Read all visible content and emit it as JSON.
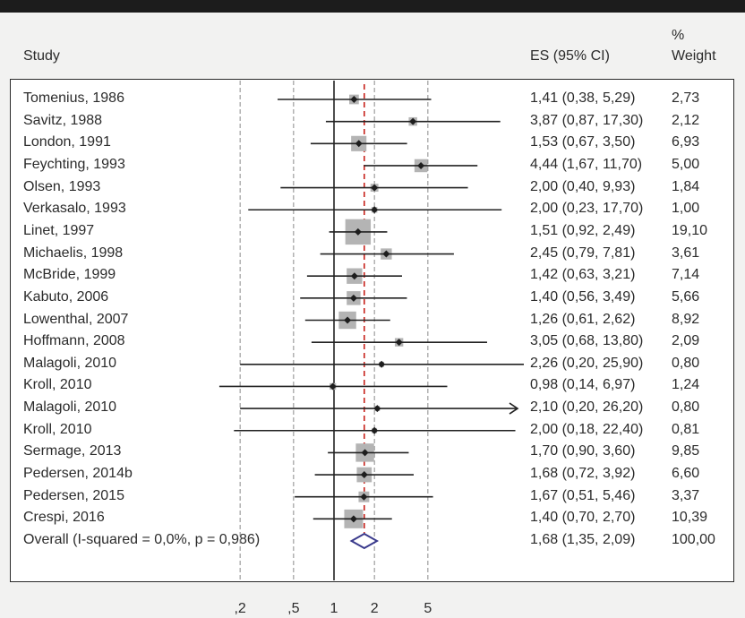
{
  "header": {
    "study": "Study",
    "es": "ES (95% CI)",
    "weight_line1": "%",
    "weight_line2": "Weight"
  },
  "chart_data": {
    "type": "forest",
    "x_scale": "log",
    "xlim": [
      0.14,
      26.2
    ],
    "null_value": 1,
    "pooled_line": 1.68,
    "x_ticks": [
      0.2,
      0.5,
      1,
      2,
      5
    ],
    "x_tick_labels": [
      ",2",
      ",5",
      "1",
      "2",
      "5"
    ],
    "colors": {
      "box": "#b4b4b4",
      "line": "#222222",
      "pooled_line": "#c8231c",
      "diamond": "#3a3a8c"
    },
    "studies": [
      {
        "study": "Tomenius, 1986",
        "es": 1.41,
        "lo": 0.38,
        "hi": 5.29,
        "es_text": "1,41 (0,38, 5,29)",
        "weight": 2.73,
        "weight_text": "2,73"
      },
      {
        "study": "Savitz, 1988",
        "es": 3.87,
        "lo": 0.87,
        "hi": 17.3,
        "es_text": "3,87 (0,87, 17,30)",
        "weight": 2.12,
        "weight_text": "2,12"
      },
      {
        "study": "London, 1991",
        "es": 1.53,
        "lo": 0.67,
        "hi": 3.5,
        "es_text": "1,53 (0,67, 3,50)",
        "weight": 6.93,
        "weight_text": "6,93"
      },
      {
        "study": "Feychting, 1993",
        "es": 4.44,
        "lo": 1.67,
        "hi": 11.7,
        "es_text": "4,44 (1,67, 11,70)",
        "weight": 5.0,
        "weight_text": "5,00"
      },
      {
        "study": "Olsen, 1993",
        "es": 2.0,
        "lo": 0.4,
        "hi": 9.93,
        "es_text": "2,00 (0,40, 9,93)",
        "weight": 1.84,
        "weight_text": "1,84"
      },
      {
        "study": "Verkasalo, 1993",
        "es": 2.0,
        "lo": 0.23,
        "hi": 17.7,
        "es_text": "2,00 (0,23, 17,70)",
        "weight": 1.0,
        "weight_text": "1,00"
      },
      {
        "study": "Linet, 1997",
        "es": 1.51,
        "lo": 0.92,
        "hi": 2.49,
        "es_text": "1,51 (0,92, 2,49)",
        "weight": 19.1,
        "weight_text": "19,10"
      },
      {
        "study": "Michaelis, 1998",
        "es": 2.45,
        "lo": 0.79,
        "hi": 7.81,
        "es_text": "2,45 (0,79, 7,81)",
        "weight": 3.61,
        "weight_text": "3,61"
      },
      {
        "study": "McBride, 1999",
        "es": 1.42,
        "lo": 0.63,
        "hi": 3.21,
        "es_text": "1,42 (0,63, 3,21)",
        "weight": 7.14,
        "weight_text": "7,14"
      },
      {
        "study": "Kabuto, 2006",
        "es": 1.4,
        "lo": 0.56,
        "hi": 3.49,
        "es_text": "1,40 (0,56, 3,49)",
        "weight": 5.66,
        "weight_text": "5,66"
      },
      {
        "study": "Lowenthal, 2007",
        "es": 1.26,
        "lo": 0.61,
        "hi": 2.62,
        "es_text": "1,26 (0,61, 2,62)",
        "weight": 8.92,
        "weight_text": "8,92"
      },
      {
        "study": "Hoffmann, 2008",
        "es": 3.05,
        "lo": 0.68,
        "hi": 13.8,
        "es_text": "3,05 (0,68, 13,80)",
        "weight": 2.09,
        "weight_text": "2,09"
      },
      {
        "study": "Malagoli, 2010",
        "es": 2.26,
        "lo": 0.2,
        "hi": 25.9,
        "es_text": "2,26 (0,20, 25,90)",
        "weight": 0.8,
        "weight_text": "0,80"
      },
      {
        "study": "Kroll, 2010",
        "es": 0.98,
        "lo": 0.14,
        "hi": 6.97,
        "es_text": "0,98 (0,14, 6,97)",
        "weight": 1.24,
        "weight_text": "1,24"
      },
      {
        "study": "Malagoli, 2010",
        "es": 2.1,
        "lo": 0.2,
        "hi": 26.2,
        "es_text": "2,10 (0,20, 26,20)",
        "weight": 0.8,
        "weight_text": "0,80",
        "arrow": true
      },
      {
        "study": "Kroll, 2010",
        "es": 2.0,
        "lo": 0.18,
        "hi": 22.4,
        "es_text": "2,00 (0,18, 22,40)",
        "weight": 0.81,
        "weight_text": "0,81"
      },
      {
        "study": "Sermage, 2013",
        "es": 1.7,
        "lo": 0.9,
        "hi": 3.6,
        "es_text": "1,70 (0,90, 3,60)",
        "weight": 9.85,
        "weight_text": "9,85"
      },
      {
        "study": "Pedersen, 2014b",
        "es": 1.68,
        "lo": 0.72,
        "hi": 3.92,
        "es_text": "1,68 (0,72, 3,92)",
        "weight": 6.6,
        "weight_text": "6,60"
      },
      {
        "study": "Pedersen, 2015",
        "es": 1.67,
        "lo": 0.51,
        "hi": 5.46,
        "es_text": "1,67 (0,51, 5,46)",
        "weight": 3.37,
        "weight_text": "3,37"
      },
      {
        "study": "Crespi, 2016",
        "es": 1.4,
        "lo": 0.7,
        "hi": 2.7,
        "es_text": "1,40 (0,70, 2,70)",
        "weight": 10.39,
        "weight_text": "10,39"
      }
    ],
    "overall": {
      "label": "Overall (I-squared = 0,0%, p = 0,986)",
      "es": 1.68,
      "lo": 1.35,
      "hi": 2.09,
      "es_text": "1,68 (1,35, 2,09)",
      "weight_text": "100,00"
    }
  }
}
